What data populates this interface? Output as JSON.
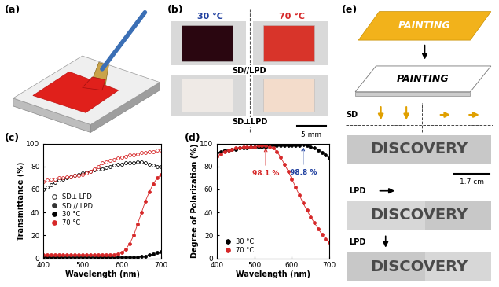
{
  "panels": {
    "a": {
      "label": "(a)"
    },
    "b": {
      "label": "(b)",
      "temperatures": [
        {
          "text": "30 °C",
          "color": "#1f3f9f"
        },
        {
          "text": "70 °C",
          "color": "#d62728"
        }
      ],
      "rows": [
        "SD//LPD",
        "SD⊥LPD"
      ],
      "scale_bar": "5 mm"
    },
    "e": {
      "label": "(e)",
      "sign_texts": [
        "PAINTING",
        "PAINTING"
      ],
      "sd_label": "SD",
      "words": [
        "DISCOVERY",
        "DISCOVERY",
        "DISCOVERY"
      ],
      "scale_bar": "1.7 cm",
      "lpd_labels": [
        "LPD",
        "LPD"
      ]
    }
  },
  "chart_data": [
    {
      "type": "line",
      "label": "(c)",
      "x_label": "Wavelength (nm)",
      "y_label": "Transmittance (%)",
      "x": [
        400,
        410,
        420,
        430,
        440,
        450,
        460,
        470,
        480,
        490,
        500,
        510,
        520,
        530,
        540,
        550,
        560,
        570,
        580,
        590,
        600,
        610,
        620,
        630,
        640,
        650,
        660,
        670,
        680,
        690,
        700
      ],
      "xlim": [
        400,
        700
      ],
      "xticks": [
        400,
        500,
        600,
        700
      ],
      "ylim": [
        0,
        100
      ],
      "yticks": [
        0,
        20,
        40,
        60,
        80,
        100
      ],
      "legend": "center left",
      "legend_entries": [
        {
          "label": "SD⊥ LPD",
          "marker": "open",
          "color": "#333333"
        },
        {
          "label": "SD // LPD",
          "marker": "filled",
          "color": "#333333"
        },
        {
          "label": "30 °C",
          "marker": "filled",
          "color": "#000000"
        },
        {
          "label": "70 °C",
          "marker": "filled",
          "color": "#d62728"
        }
      ],
      "series": [
        {
          "color": "#000000",
          "marker": "open",
          "values": [
            60,
            62,
            64,
            66,
            68,
            69,
            70,
            71,
            72,
            73,
            74,
            75,
            76,
            77,
            78,
            78,
            79,
            80,
            81,
            82,
            82,
            83,
            83,
            83,
            84,
            84,
            83,
            82,
            81,
            80,
            80
          ]
        },
        {
          "color": "#d62728",
          "marker": "open",
          "values": [
            67,
            68,
            69,
            69,
            70,
            70,
            71,
            71,
            72,
            72,
            73,
            74,
            76,
            78,
            80,
            83,
            84,
            85,
            86,
            87,
            88,
            89,
            90,
            90,
            91,
            92,
            92,
            93,
            93,
            94,
            94
          ]
        },
        {
          "color": "#000000",
          "marker": "filled",
          "values": [
            1,
            1,
            1,
            1,
            1,
            1,
            1,
            1,
            1,
            1,
            1,
            1,
            1,
            1,
            1,
            1,
            1,
            1,
            1,
            1,
            1,
            1,
            1,
            1,
            1,
            2,
            2,
            3,
            4,
            5,
            6
          ]
        },
        {
          "color": "#d62728",
          "marker": "filled",
          "values": [
            3,
            3,
            3,
            3,
            3,
            3,
            3,
            3,
            3,
            3,
            3,
            3,
            3,
            3,
            3,
            3,
            3,
            3,
            3,
            4,
            5,
            8,
            13,
            20,
            30,
            40,
            50,
            58,
            65,
            70,
            73
          ]
        }
      ]
    },
    {
      "type": "line",
      "label": "(d)",
      "x_label": "Wavelength (nm)",
      "y_label": "Degree of Polarization (%)",
      "x": [
        400,
        410,
        420,
        430,
        440,
        450,
        460,
        470,
        480,
        490,
        500,
        510,
        520,
        530,
        540,
        550,
        560,
        570,
        580,
        590,
        600,
        610,
        620,
        630,
        640,
        650,
        660,
        670,
        680,
        690,
        700
      ],
      "xlim": [
        400,
        700
      ],
      "xticks": [
        400,
        500,
        600,
        700
      ],
      "ylim": [
        0,
        100
      ],
      "yticks": [
        0,
        20,
        40,
        60,
        80,
        100
      ],
      "legend": "lower left",
      "legend_entries": [
        {
          "label": "30 °C",
          "marker": "filled",
          "color": "#000000"
        },
        {
          "label": "70 °C",
          "marker": "filled",
          "color": "#d62728"
        }
      ],
      "annotations": [
        {
          "text": "98.1 %",
          "x": 530,
          "y": 98.1,
          "color": "#d62728"
        },
        {
          "text": "98.8 %",
          "x": 630,
          "y": 98.8,
          "color": "#1f3f9f"
        }
      ],
      "series": [
        {
          "color": "#000000",
          "marker": "filled",
          "values": [
            92,
            93,
            94,
            94,
            95,
            95,
            96,
            96,
            96,
            97,
            97,
            97,
            97,
            97,
            98,
            98,
            98,
            98,
            98,
            98,
            98,
            98,
            98,
            98.8,
            98,
            97,
            96,
            94,
            92,
            90,
            87
          ]
        },
        {
          "color": "#d62728",
          "marker": "filled",
          "values": [
            89,
            91,
            93,
            94,
            95,
            96,
            96,
            97,
            97,
            97,
            97,
            98,
            98,
            98.1,
            97,
            96,
            93,
            88,
            82,
            76,
            69,
            62,
            55,
            48,
            42,
            36,
            31,
            26,
            21,
            17,
            14
          ]
        }
      ]
    }
  ]
}
